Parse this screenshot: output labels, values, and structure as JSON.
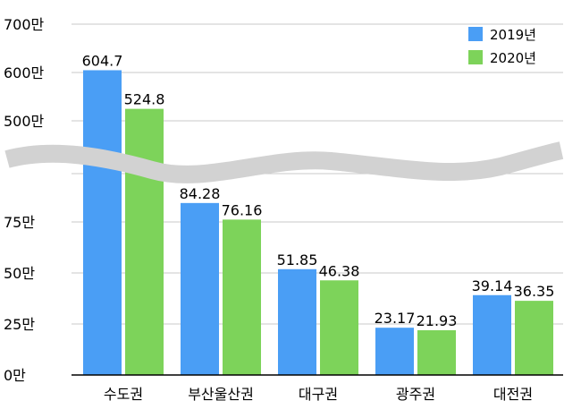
{
  "chart_data": {
    "type": "bar",
    "broken_axis": true,
    "categories": [
      "수도권",
      "부산울산권",
      "대구권",
      "광주권",
      "대전권"
    ],
    "series": [
      {
        "name": "2019년",
        "color": "#4a9ef5",
        "values": [
          604.7,
          84.28,
          51.85,
          23.17,
          39.14
        ],
        "labels": [
          "604.7",
          "84.28",
          "51.85",
          "23.17",
          "39.14"
        ]
      },
      {
        "name": "2020년",
        "color": "#7dd35a",
        "values": [
          524.8,
          76.16,
          46.38,
          21.93,
          36.35
        ],
        "labels": [
          "524.8",
          "76.16",
          "46.38",
          "21.93",
          "36.35"
        ]
      }
    ],
    "y_ticks_lower": [
      {
        "value": 0,
        "label": "0만"
      },
      {
        "value": 25,
        "label": "25만"
      },
      {
        "value": 50,
        "label": "50만"
      },
      {
        "value": 75,
        "label": "75만"
      }
    ],
    "y_ticks_upper": [
      {
        "value": 500,
        "label": "500만"
      },
      {
        "value": 600,
        "label": "600만"
      },
      {
        "value": 700,
        "label": "700만"
      }
    ],
    "ylim_lower": [
      0,
      100
    ],
    "ylim_upper": [
      450,
      700
    ],
    "grid": true,
    "legend_position": "top-right"
  }
}
